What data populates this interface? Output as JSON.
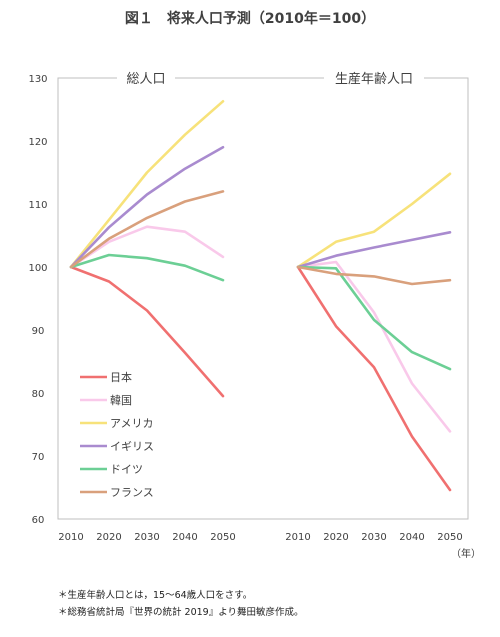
{
  "title": "図１　将来人口予測（2010年＝100）",
  "year_unit": "（年）",
  "notes": [
    "＊生産年齢人口とは，15～64歳人口をさす。",
    "＊総務省統計局『世界の統計 2019』より舞田敏彦作成。"
  ],
  "colors": {
    "日本": "#f07070",
    "韓国": "#f9c9ea",
    "アメリカ": "#f7e27a",
    "イギリス": "#a98bcf",
    "ドイツ": "#6ccf95",
    "フランス": "#d9a07c"
  },
  "chart_data": {
    "type": "line",
    "x": [
      2010,
      2020,
      2030,
      2040,
      2050
    ],
    "ylim": [
      60,
      130
    ],
    "yticks": [
      60,
      70,
      80,
      90,
      100,
      110,
      120,
      130
    ],
    "legend": "bottom-left",
    "grid": false,
    "panels": [
      {
        "title": "総人口",
        "series": [
          {
            "name": "日本",
            "values": [
              100,
              97.7,
              93.1,
              86.4,
              79.5
            ]
          },
          {
            "name": "韓国",
            "values": [
              100,
              104,
              106.4,
              105.6,
              101.6
            ]
          },
          {
            "name": "アメリカ",
            "values": [
              100,
              107.5,
              115,
              121,
              126.3
            ]
          },
          {
            "name": "イギリス",
            "values": [
              100,
              106.3,
              111.5,
              115.6,
              119
            ]
          },
          {
            "name": "ドイツ",
            "values": [
              100,
              101.9,
              101.4,
              100.2,
              97.9
            ]
          },
          {
            "name": "フランス",
            "values": [
              100,
              104.5,
              107.8,
              110.4,
              112
            ]
          }
        ]
      },
      {
        "title": "生産年齢人口",
        "series": [
          {
            "name": "日本",
            "values": [
              100,
              90.6,
              84.1,
              73.1,
              64.6
            ]
          },
          {
            "name": "韓国",
            "values": [
              100,
              100.8,
              92.8,
              81.5,
              73.9
            ]
          },
          {
            "name": "アメリカ",
            "values": [
              100,
              104,
              105.6,
              110,
              114.8
            ]
          },
          {
            "name": "イギリス",
            "values": [
              100,
              101.8,
              103.1,
              104.3,
              105.5
            ]
          },
          {
            "name": "ドイツ",
            "values": [
              100,
              99.8,
              91.6,
              86.5,
              83.8
            ]
          },
          {
            "name": "フランス",
            "values": [
              100,
              98.9,
              98.5,
              97.3,
              97.9
            ]
          }
        ]
      }
    ]
  }
}
